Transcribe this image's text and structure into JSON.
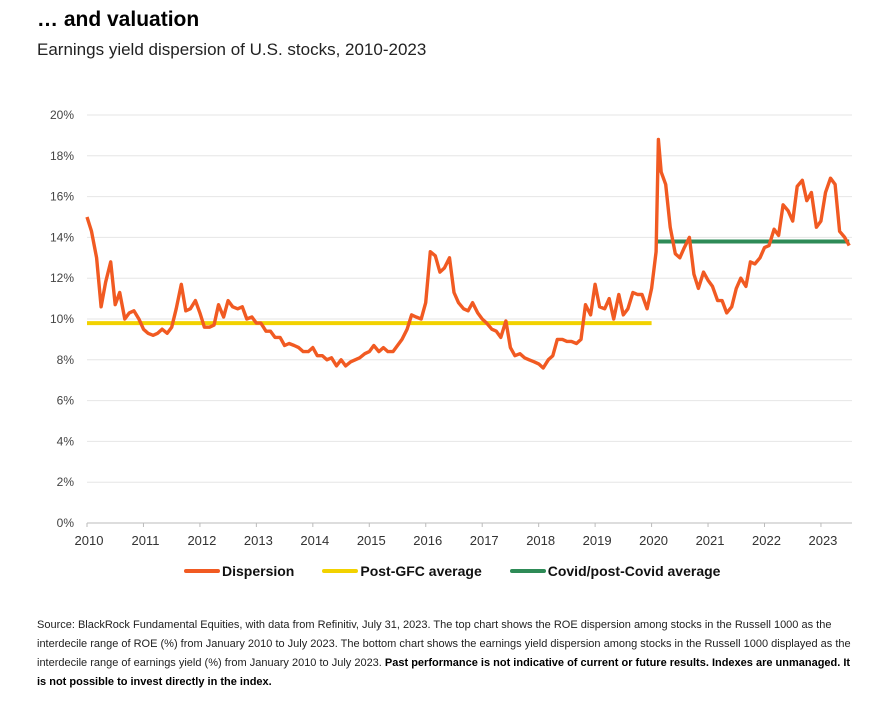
{
  "header": {
    "title": "… and valuation",
    "subtitle": "Earnings yield dispersion of U.S. stocks, 2010-2023"
  },
  "legend": {
    "items": [
      {
        "label": "Dispersion",
        "color": "#F15A22"
      },
      {
        "label": "Post-GFC average",
        "color": "#F2D200"
      },
      {
        "label": "Covid/post-Covid average",
        "color": "#2E8B57"
      }
    ]
  },
  "source": {
    "text": "Source: BlackRock Fundamental Equities, with data from Refinitiv, July 31, 2023. The top chart shows the ROE dispersion among stocks in the Russell 1000 as the interdecile range of ROE (%) from January 2010 to July 2023. The bottom chart shows the earnings yield dispersion among stocks in the Russell 1000 displayed as the interdecile range of earnings yield (%) from January 2010 to July 2023.",
    "bold_text": "Past performance is not indicative of current or future results. Indexes are unmanaged. It is not possible to invest directly in the index."
  },
  "chart_data": {
    "type": "line",
    "title": "Earnings yield dispersion of U.S. stocks, 2010-2023",
    "x_ticks": [
      "2010",
      "2011",
      "2012",
      "2013",
      "2014",
      "2015",
      "2016",
      "2017",
      "2018",
      "2019",
      "2020",
      "2021",
      "2022",
      "2023"
    ],
    "y_ticks": [
      "0%",
      "2%",
      "4%",
      "6%",
      "8%",
      "10%",
      "12%",
      "14%",
      "16%",
      "18%",
      "20%"
    ],
    "ylim": [
      0,
      20
    ],
    "xlim": [
      2010.0,
      2023.55
    ],
    "grid": "horizontal",
    "legend_position": "bottom",
    "series": [
      {
        "name": "Dispersion",
        "color": "#F15A22",
        "points": [
          [
            2010.0,
            15.0
          ],
          [
            2010.08,
            14.3
          ],
          [
            2010.17,
            13.0
          ],
          [
            2010.25,
            10.6
          ],
          [
            2010.33,
            11.8
          ],
          [
            2010.42,
            12.8
          ],
          [
            2010.5,
            10.7
          ],
          [
            2010.58,
            11.3
          ],
          [
            2010.67,
            10.0
          ],
          [
            2010.75,
            10.3
          ],
          [
            2010.83,
            10.4
          ],
          [
            2010.92,
            10.0
          ],
          [
            2011.0,
            9.5
          ],
          [
            2011.08,
            9.3
          ],
          [
            2011.17,
            9.2
          ],
          [
            2011.25,
            9.3
          ],
          [
            2011.33,
            9.5
          ],
          [
            2011.42,
            9.3
          ],
          [
            2011.5,
            9.6
          ],
          [
            2011.58,
            10.5
          ],
          [
            2011.67,
            11.7
          ],
          [
            2011.75,
            10.4
          ],
          [
            2011.83,
            10.5
          ],
          [
            2011.92,
            10.9
          ],
          [
            2012.0,
            10.3
          ],
          [
            2012.08,
            9.6
          ],
          [
            2012.17,
            9.6
          ],
          [
            2012.25,
            9.7
          ],
          [
            2012.33,
            10.7
          ],
          [
            2012.42,
            10.1
          ],
          [
            2012.5,
            10.9
          ],
          [
            2012.58,
            10.6
          ],
          [
            2012.67,
            10.5
          ],
          [
            2012.75,
            10.6
          ],
          [
            2012.83,
            10.0
          ],
          [
            2012.92,
            10.1
          ],
          [
            2013.0,
            9.8
          ],
          [
            2013.08,
            9.8
          ],
          [
            2013.17,
            9.4
          ],
          [
            2013.25,
            9.4
          ],
          [
            2013.33,
            9.1
          ],
          [
            2013.42,
            9.1
          ],
          [
            2013.5,
            8.7
          ],
          [
            2013.58,
            8.8
          ],
          [
            2013.67,
            8.7
          ],
          [
            2013.75,
            8.6
          ],
          [
            2013.83,
            8.4
          ],
          [
            2013.92,
            8.4
          ],
          [
            2014.0,
            8.6
          ],
          [
            2014.08,
            8.2
          ],
          [
            2014.17,
            8.2
          ],
          [
            2014.25,
            8.0
          ],
          [
            2014.33,
            8.1
          ],
          [
            2014.42,
            7.7
          ],
          [
            2014.5,
            8.0
          ],
          [
            2014.58,
            7.7
          ],
          [
            2014.67,
            7.9
          ],
          [
            2014.75,
            8.0
          ],
          [
            2014.83,
            8.1
          ],
          [
            2014.92,
            8.3
          ],
          [
            2015.0,
            8.4
          ],
          [
            2015.08,
            8.7
          ],
          [
            2015.17,
            8.4
          ],
          [
            2015.25,
            8.6
          ],
          [
            2015.33,
            8.4
          ],
          [
            2015.42,
            8.4
          ],
          [
            2015.5,
            8.7
          ],
          [
            2015.58,
            9.0
          ],
          [
            2015.67,
            9.5
          ],
          [
            2015.75,
            10.2
          ],
          [
            2015.83,
            10.1
          ],
          [
            2015.92,
            10.0
          ],
          [
            2016.0,
            10.8
          ],
          [
            2016.08,
            13.3
          ],
          [
            2016.17,
            13.1
          ],
          [
            2016.25,
            12.3
          ],
          [
            2016.33,
            12.5
          ],
          [
            2016.42,
            13.0
          ],
          [
            2016.5,
            11.3
          ],
          [
            2016.58,
            10.8
          ],
          [
            2016.67,
            10.5
          ],
          [
            2016.75,
            10.4
          ],
          [
            2016.83,
            10.8
          ],
          [
            2016.92,
            10.3
          ],
          [
            2017.0,
            10.0
          ],
          [
            2017.08,
            9.8
          ],
          [
            2017.17,
            9.5
          ],
          [
            2017.25,
            9.4
          ],
          [
            2017.33,
            9.1
          ],
          [
            2017.42,
            9.9
          ],
          [
            2017.5,
            8.6
          ],
          [
            2017.58,
            8.2
          ],
          [
            2017.67,
            8.3
          ],
          [
            2017.75,
            8.1
          ],
          [
            2017.83,
            8.0
          ],
          [
            2017.92,
            7.9
          ],
          [
            2018.0,
            7.8
          ],
          [
            2018.08,
            7.6
          ],
          [
            2018.17,
            8.0
          ],
          [
            2018.25,
            8.2
          ],
          [
            2018.33,
            9.0
          ],
          [
            2018.42,
            9.0
          ],
          [
            2018.5,
            8.9
          ],
          [
            2018.58,
            8.9
          ],
          [
            2018.67,
            8.8
          ],
          [
            2018.75,
            9.0
          ],
          [
            2018.83,
            10.7
          ],
          [
            2018.92,
            10.2
          ],
          [
            2019.0,
            11.7
          ],
          [
            2019.08,
            10.6
          ],
          [
            2019.17,
            10.5
          ],
          [
            2019.25,
            11.0
          ],
          [
            2019.33,
            10.0
          ],
          [
            2019.42,
            11.2
          ],
          [
            2019.5,
            10.2
          ],
          [
            2019.58,
            10.5
          ],
          [
            2019.67,
            11.3
          ],
          [
            2019.75,
            11.2
          ],
          [
            2019.83,
            11.2
          ],
          [
            2019.92,
            10.5
          ],
          [
            2020.0,
            11.5
          ],
          [
            2020.08,
            13.3
          ],
          [
            2020.12,
            18.8
          ],
          [
            2020.17,
            17.2
          ],
          [
            2020.25,
            16.6
          ],
          [
            2020.33,
            14.5
          ],
          [
            2020.42,
            13.2
          ],
          [
            2020.5,
            13.0
          ],
          [
            2020.58,
            13.5
          ],
          [
            2020.67,
            14.0
          ],
          [
            2020.75,
            12.2
          ],
          [
            2020.83,
            11.5
          ],
          [
            2020.92,
            12.3
          ],
          [
            2021.0,
            11.9
          ],
          [
            2021.08,
            11.6
          ],
          [
            2021.17,
            10.9
          ],
          [
            2021.25,
            10.9
          ],
          [
            2021.33,
            10.3
          ],
          [
            2021.42,
            10.6
          ],
          [
            2021.5,
            11.5
          ],
          [
            2021.58,
            12.0
          ],
          [
            2021.67,
            11.6
          ],
          [
            2021.75,
            12.8
          ],
          [
            2021.83,
            12.7
          ],
          [
            2021.92,
            13.0
          ],
          [
            2022.0,
            13.5
          ],
          [
            2022.08,
            13.6
          ],
          [
            2022.17,
            14.4
          ],
          [
            2022.25,
            14.1
          ],
          [
            2022.33,
            15.6
          ],
          [
            2022.42,
            15.3
          ],
          [
            2022.5,
            14.8
          ],
          [
            2022.58,
            16.5
          ],
          [
            2022.67,
            16.8
          ],
          [
            2022.75,
            15.8
          ],
          [
            2022.83,
            16.2
          ],
          [
            2022.92,
            14.5
          ],
          [
            2023.0,
            14.8
          ],
          [
            2023.08,
            16.2
          ],
          [
            2023.17,
            16.9
          ],
          [
            2023.25,
            16.6
          ],
          [
            2023.33,
            14.3
          ],
          [
            2023.42,
            14.0
          ],
          [
            2023.5,
            13.6
          ]
        ]
      },
      {
        "name": "Post-GFC average",
        "color": "#F2D200",
        "points": [
          [
            2010.0,
            9.8
          ],
          [
            2020.0,
            9.8
          ]
        ]
      },
      {
        "name": "Covid/post-Covid average",
        "color": "#2E8B57",
        "points": [
          [
            2020.08,
            13.8
          ],
          [
            2023.5,
            13.8
          ]
        ]
      }
    ]
  }
}
